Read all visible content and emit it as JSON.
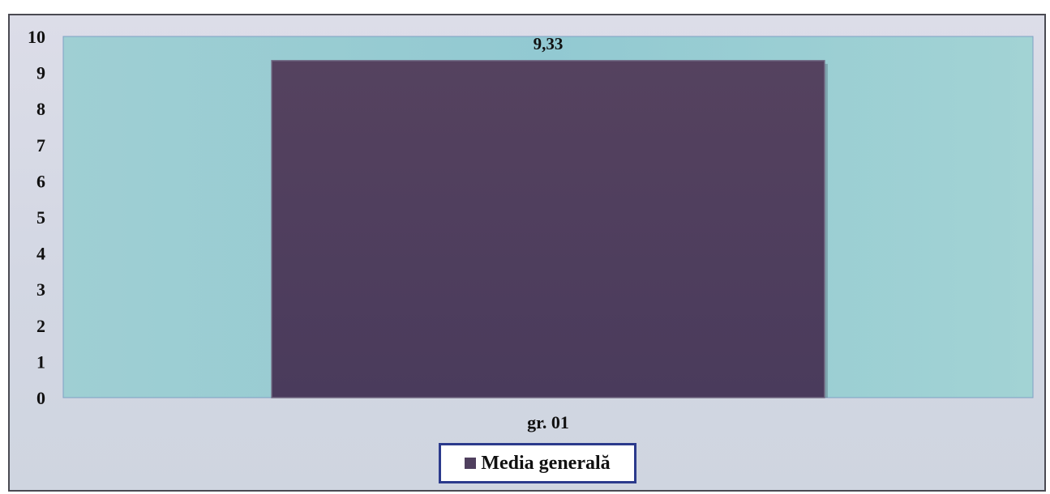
{
  "chart_data": {
    "type": "bar",
    "categories": [
      "gr. 01"
    ],
    "series": [
      {
        "name": "Media generală",
        "values": [
          9.33
        ],
        "color": "#4f3f5e"
      }
    ],
    "data_labels": [
      "9,33"
    ],
    "y_ticks": [
      "0",
      "1",
      "2",
      "3",
      "4",
      "5",
      "6",
      "7",
      "8",
      "9",
      "10"
    ],
    "ylim": [
      0,
      10
    ],
    "grid": false,
    "legend_position": "bottom",
    "plot_background": "#9fd0d4",
    "chart_background": "#d4d8e4"
  }
}
